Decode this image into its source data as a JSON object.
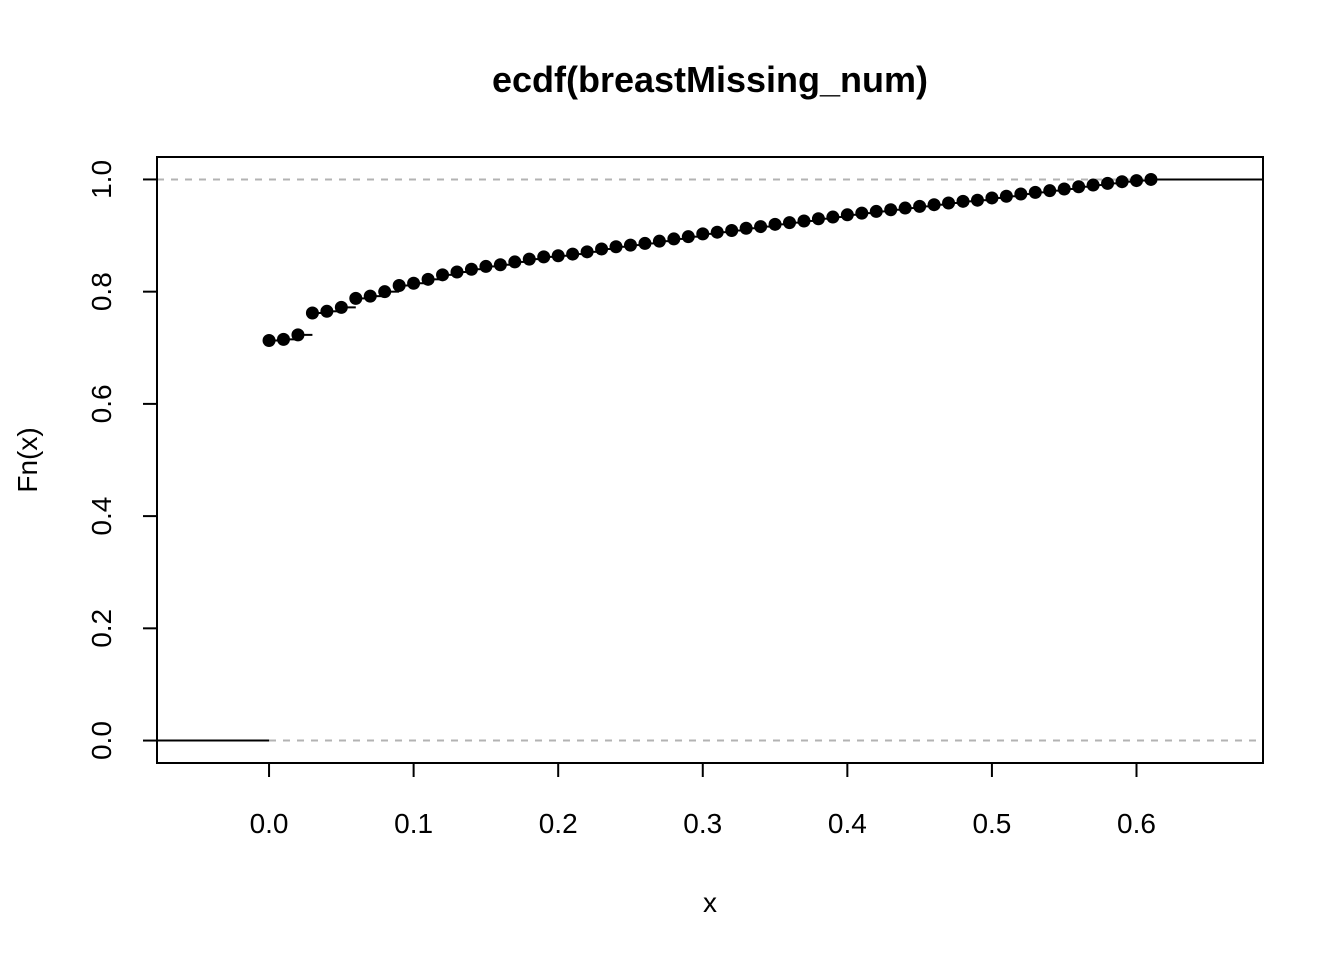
{
  "chart_data": {
    "type": "scatter",
    "title": "ecdf(breastMissing_num)",
    "xlabel": "x",
    "ylabel": "Fn(x)",
    "xlim": [
      -0.0775,
      0.6875
    ],
    "ylim": [
      -0.04,
      1.04
    ],
    "xticks": [
      "0.0",
      "0.1",
      "0.2",
      "0.3",
      "0.4",
      "0.5",
      "0.6"
    ],
    "yticks": [
      "0.0",
      "0.2",
      "0.4",
      "0.6",
      "0.8",
      "1.0"
    ],
    "reference_lines_y": [
      0,
      1
    ],
    "grid": false,
    "x": [
      0.0,
      0.01,
      0.02,
      0.03,
      0.04,
      0.05,
      0.06,
      0.07,
      0.08,
      0.09,
      0.1,
      0.11,
      0.12,
      0.13,
      0.14,
      0.15,
      0.16,
      0.17,
      0.18,
      0.19,
      0.2,
      0.21,
      0.22,
      0.23,
      0.24,
      0.25,
      0.26,
      0.27,
      0.28,
      0.29,
      0.3,
      0.31,
      0.32,
      0.33,
      0.34,
      0.35,
      0.36,
      0.37,
      0.38,
      0.39,
      0.4,
      0.41,
      0.42,
      0.43,
      0.44,
      0.45,
      0.46,
      0.47,
      0.48,
      0.49,
      0.5,
      0.51,
      0.52,
      0.53,
      0.54,
      0.55,
      0.56,
      0.57,
      0.58,
      0.59,
      0.6,
      0.61
    ],
    "y": [
      0.713,
      0.715,
      0.723,
      0.762,
      0.765,
      0.772,
      0.788,
      0.792,
      0.8,
      0.811,
      0.815,
      0.822,
      0.83,
      0.835,
      0.84,
      0.845,
      0.848,
      0.853,
      0.858,
      0.862,
      0.864,
      0.867,
      0.871,
      0.876,
      0.88,
      0.883,
      0.886,
      0.89,
      0.894,
      0.898,
      0.903,
      0.906,
      0.909,
      0.913,
      0.916,
      0.92,
      0.923,
      0.926,
      0.93,
      0.933,
      0.937,
      0.94,
      0.943,
      0.946,
      0.949,
      0.952,
      0.955,
      0.958,
      0.961,
      0.963,
      0.967,
      0.97,
      0.974,
      0.977,
      0.98,
      0.983,
      0.987,
      0.99,
      0.993,
      0.996,
      0.998,
      1.0
    ]
  }
}
